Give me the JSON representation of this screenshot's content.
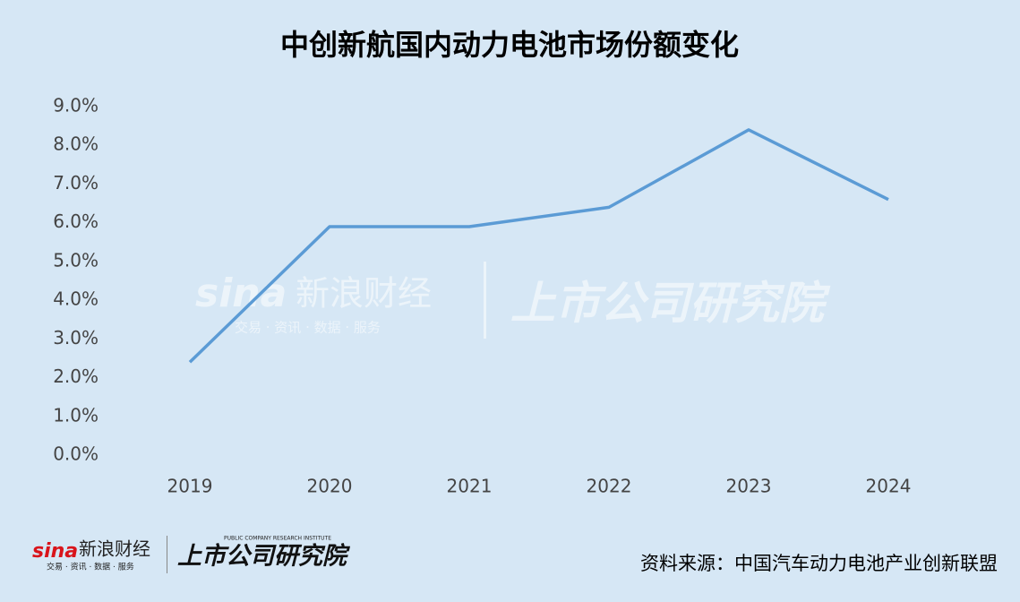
{
  "chart_data": {
    "type": "line",
    "title": "中创新航国内动力电池市场份额变化",
    "categories": [
      "2019",
      "2020",
      "2021",
      "2022",
      "2023",
      "2024"
    ],
    "series": [
      {
        "name": "中创新航国内动力电池市场份额",
        "color": "#5b9bd5",
        "values": [
          2.4,
          5.9,
          5.9,
          6.4,
          8.4,
          6.6
        ]
      }
    ],
    "ylim": [
      0,
      9
    ],
    "yticks": [
      {
        "value": 0,
        "label": "0.0%"
      },
      {
        "value": 1,
        "label": "1.0%"
      },
      {
        "value": 2,
        "label": "2.0%"
      },
      {
        "value": 3,
        "label": "3.0%"
      },
      {
        "value": 4,
        "label": "4.0%"
      },
      {
        "value": 5,
        "label": "5.0%"
      },
      {
        "value": 6,
        "label": "6.0%"
      },
      {
        "value": 7,
        "label": "7.0%"
      },
      {
        "value": 8,
        "label": "8.0%"
      },
      {
        "value": 9,
        "label": "9.0%"
      }
    ],
    "grid": false,
    "legend": false,
    "source": "资料来源：中国汽车动力电池产业创新联盟"
  },
  "branding": {
    "sina": "sina",
    "sina_name": "新浪财经",
    "sina_slogan": "交易 · 资讯 · 数据 · 服务",
    "institute_en": "PUBLIC COMPANY RESEARCH INSTITUTE",
    "institute": "上市公司研究院"
  }
}
